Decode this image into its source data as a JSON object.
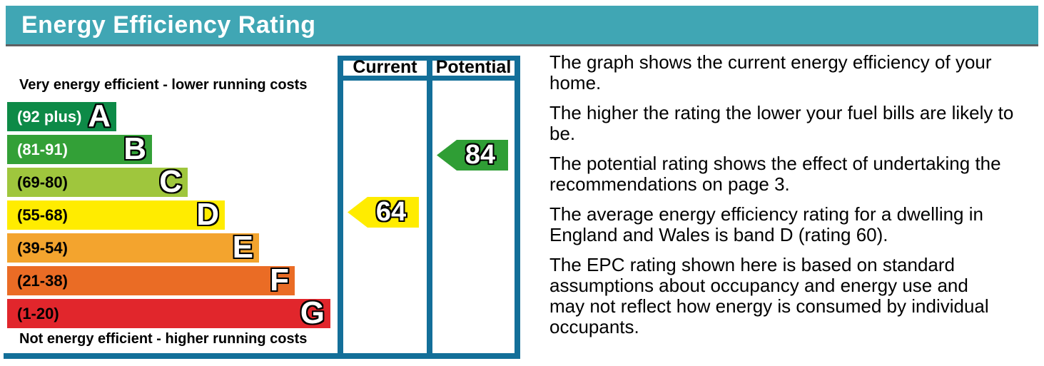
{
  "header": {
    "title": "Energy Efficiency Rating",
    "background_color": "#40a6b4"
  },
  "chart_data": {
    "type": "bar",
    "variant": "epc-energy-efficiency-rating",
    "top_caption": "Very energy efficient - lower running costs",
    "bottom_caption": "Not energy efficient - higher running costs",
    "column_headers": {
      "current": "Current",
      "potential": "Potential"
    },
    "frame_color": "#136f99",
    "bands": [
      {
        "letter": "A",
        "range_label": "(92 plus)",
        "min": 92,
        "max": 100,
        "color": "#0d8a47",
        "label_color": "#ffffff"
      },
      {
        "letter": "B",
        "range_label": "(81-91)",
        "min": 81,
        "max": 91,
        "color": "#33a037",
        "label_color": "#ffffff"
      },
      {
        "letter": "C",
        "range_label": "(69-80)",
        "min": 69,
        "max": 80,
        "color": "#9fc63d",
        "label_color": "#000000"
      },
      {
        "letter": "D",
        "range_label": "(55-68)",
        "min": 55,
        "max": 68,
        "color": "#ffec00",
        "label_color": "#000000"
      },
      {
        "letter": "E",
        "range_label": "(39-54)",
        "min": 39,
        "max": 54,
        "color": "#f3a42e",
        "label_color": "#000000"
      },
      {
        "letter": "F",
        "range_label": "(21-38)",
        "min": 21,
        "max": 38,
        "color": "#ea6c25",
        "label_color": "#000000"
      },
      {
        "letter": "G",
        "range_label": "(1-20)",
        "min": 1,
        "max": 20,
        "color": "#e1262c",
        "label_color": "#000000"
      }
    ],
    "current": {
      "value": "64",
      "band": "D",
      "arrow_color": "#ffec00"
    },
    "potential": {
      "value": "84",
      "band": "B",
      "arrow_color": "#2f9e35"
    }
  },
  "description": {
    "paragraphs": [
      {
        "text": "The graph shows the current energy efficiency of your\nhome."
      },
      {
        "text": "The higher the rating the lower your fuel bills are likely to\nbe."
      },
      {
        "text": "The potential rating shows the effect of undertaking the\nrecommendations on page 3."
      },
      {
        "text": "The average energy efficiency rating for a dwelling in\nEngland and Wales is band D (rating 60)."
      },
      {
        "text": "The EPC rating shown here is based on standard\nassumptions about occupancy and energy use and\nmay not reflect how energy is consumed by individual\noccupants."
      }
    ]
  }
}
